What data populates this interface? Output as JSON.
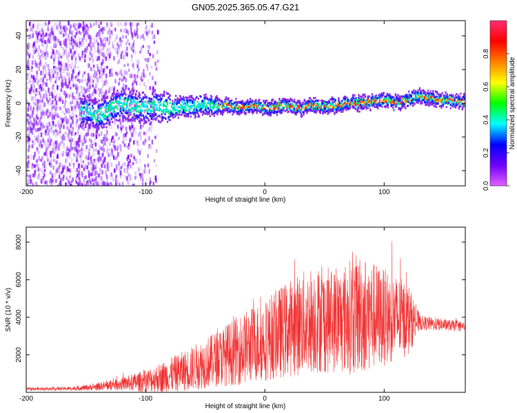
{
  "title": "GN05.2025.365.05.47.G21",
  "chart_data": [
    {
      "type": "heatmap",
      "name": "spectrogram",
      "xlabel": "Height of straight line (km)",
      "ylabel": "Frequency (Hz)",
      "xlim": [
        -200,
        168
      ],
      "ylim": [
        -49,
        49
      ],
      "xticks": [
        -200,
        -100,
        0,
        100
      ],
      "yticks": [
        -40,
        -20,
        0,
        20,
        40
      ],
      "ridge": [
        {
          "x": -150,
          "y": -5
        },
        {
          "x": -140,
          "y": -8
        },
        {
          "x": -130,
          "y": -3
        },
        {
          "x": -120,
          "y": 0
        },
        {
          "x": -110,
          "y": -2
        },
        {
          "x": -100,
          "y": -3
        },
        {
          "x": -90,
          "y": -2
        },
        {
          "x": -80,
          "y": -3
        },
        {
          "x": -70,
          "y": -2
        },
        {
          "x": -60,
          "y": -2
        },
        {
          "x": -50,
          "y": -1
        },
        {
          "x": -40,
          "y": -2
        },
        {
          "x": -30,
          "y": -1
        },
        {
          "x": -20,
          "y": -3
        },
        {
          "x": -10,
          "y": -1
        },
        {
          "x": 0,
          "y": -3
        },
        {
          "x": 10,
          "y": -2
        },
        {
          "x": 20,
          "y": -1
        },
        {
          "x": 30,
          "y": -3
        },
        {
          "x": 40,
          "y": -1
        },
        {
          "x": 50,
          "y": -2
        },
        {
          "x": 60,
          "y": -1
        },
        {
          "x": 70,
          "y": 0
        },
        {
          "x": 80,
          "y": 0
        },
        {
          "x": 90,
          "y": 1
        },
        {
          "x": 100,
          "y": 2
        },
        {
          "x": 110,
          "y": 0
        },
        {
          "x": 120,
          "y": 2
        },
        {
          "x": 130,
          "y": 4
        },
        {
          "x": 140,
          "y": 3
        },
        {
          "x": 150,
          "y": 2
        },
        {
          "x": 160,
          "y": 1
        },
        {
          "x": 168,
          "y": 1
        }
      ],
      "colorbar": {
        "label": "Normalized spectral amplitude",
        "range": [
          0,
          1
        ],
        "ticks": [
          "0.0",
          "0.2",
          "0.4",
          "0.6",
          "0.8"
        ],
        "stops": [
          "#e060ff",
          "#7000ff",
          "#0000ff",
          "#00ffff",
          "#00ff00",
          "#ffff00",
          "#ff8000",
          "#ff0000",
          "#ff3070"
        ]
      },
      "colors": {
        "noise": "#8a2be2",
        "ridge_core": "#e8301e",
        "ridge_mid": "#00e676",
        "ridge_edge": "#1a1aff"
      }
    },
    {
      "type": "line",
      "name": "snr",
      "xlabel": "Height of straight line (km)",
      "ylabel": "SNR (10 * v/v)",
      "xlim": [
        -200,
        168
      ],
      "ylim": [
        0,
        8800
      ],
      "xticks": [
        -200,
        -100,
        0,
        100
      ],
      "yticks": [
        2000,
        4000,
        6000,
        8000
      ],
      "color": "#f03030",
      "envelope": [
        {
          "x": -200,
          "base": 180,
          "amp": 80
        },
        {
          "x": -160,
          "base": 200,
          "amp": 100
        },
        {
          "x": -140,
          "base": 300,
          "amp": 200
        },
        {
          "x": -120,
          "base": 450,
          "amp": 350
        },
        {
          "x": -100,
          "base": 600,
          "amp": 600
        },
        {
          "x": -80,
          "base": 900,
          "amp": 900
        },
        {
          "x": -60,
          "base": 1300,
          "amp": 1200
        },
        {
          "x": -40,
          "base": 1800,
          "amp": 1500
        },
        {
          "x": -20,
          "base": 2300,
          "amp": 1900
        },
        {
          "x": 0,
          "base": 2800,
          "amp": 2200
        },
        {
          "x": 20,
          "base": 3400,
          "amp": 2600
        },
        {
          "x": 40,
          "base": 3900,
          "amp": 2900
        },
        {
          "x": 60,
          "base": 3800,
          "amp": 2800
        },
        {
          "x": 80,
          "base": 4200,
          "amp": 3300
        },
        {
          "x": 100,
          "base": 4000,
          "amp": 2600
        },
        {
          "x": 120,
          "base": 3900,
          "amp": 2000
        },
        {
          "x": 130,
          "base": 3700,
          "amp": 400
        },
        {
          "x": 168,
          "base": 3500,
          "amp": 250
        }
      ]
    }
  ]
}
